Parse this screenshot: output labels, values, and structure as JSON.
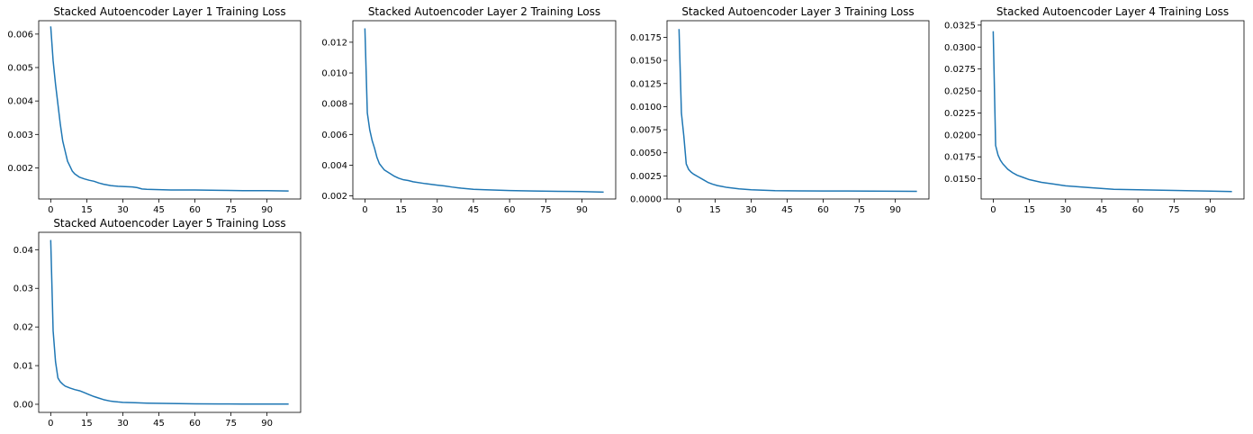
{
  "chart_data": [
    {
      "type": "line",
      "title": "Stacked Autoencoder Layer 1 Training Loss",
      "xlabel": "",
      "ylabel": "",
      "xlim": [
        -5,
        104
      ],
      "ylim": [
        0.00107,
        0.0064
      ],
      "xticks": [
        0,
        15,
        30,
        45,
        60,
        75,
        90
      ],
      "yticks": [
        0.002,
        0.003,
        0.004,
        0.005,
        0.006
      ],
      "ytick_labels": [
        "0.002",
        "0.003",
        "0.004",
        "0.005",
        "0.006"
      ],
      "grid": false,
      "series": [
        {
          "color": "#1f77b4",
          "x": [
            0,
            1,
            2,
            3,
            4,
            5,
            6,
            7,
            8,
            9,
            10,
            12,
            14,
            16,
            18,
            20,
            22,
            25,
            28,
            31,
            34,
            36,
            38,
            40,
            45,
            50,
            55,
            60,
            70,
            80,
            90,
            99
          ],
          "y": [
            0.00623,
            0.0052,
            0.0045,
            0.0039,
            0.0033,
            0.0028,
            0.0025,
            0.0022,
            0.00205,
            0.0019,
            0.00182,
            0.00172,
            0.00167,
            0.00163,
            0.0016,
            0.00155,
            0.00151,
            0.00147,
            0.00145,
            0.00144,
            0.00143,
            0.00141,
            0.00137,
            0.00136,
            0.00135,
            0.00134,
            0.00134,
            0.00134,
            0.00133,
            0.00132,
            0.00132,
            0.00131
          ]
        }
      ]
    },
    {
      "type": "line",
      "title": "Stacked Autoencoder Layer 2 Training Loss",
      "xlabel": "",
      "ylabel": "",
      "xlim": [
        -5,
        104
      ],
      "ylim": [
        0.0018,
        0.0134
      ],
      "xticks": [
        0,
        15,
        30,
        45,
        60,
        75,
        90
      ],
      "yticks": [
        0.002,
        0.004,
        0.006,
        0.008,
        0.01,
        0.012
      ],
      "ytick_labels": [
        "0.002",
        "0.004",
        "0.006",
        "0.008",
        "0.010",
        "0.012"
      ],
      "grid": false,
      "series": [
        {
          "color": "#1f77b4",
          "x": [
            0,
            1,
            2,
            3,
            4,
            5,
            6,
            7,
            8,
            10,
            12,
            14,
            16,
            18,
            20,
            25,
            30,
            33,
            36,
            40,
            45,
            50,
            60,
            70,
            80,
            90,
            99
          ],
          "y": [
            0.0129,
            0.0074,
            0.0063,
            0.0056,
            0.0051,
            0.0045,
            0.0041,
            0.0039,
            0.0037,
            0.0035,
            0.0033,
            0.00315,
            0.00305,
            0.003,
            0.00292,
            0.0028,
            0.0027,
            0.00265,
            0.00258,
            0.0025,
            0.00243,
            0.0024,
            0.00235,
            0.00232,
            0.0023,
            0.00228,
            0.00225
          ]
        }
      ]
    },
    {
      "type": "line",
      "title": "Stacked Autoencoder Layer 3 Training Loss",
      "xlabel": "",
      "ylabel": "",
      "xlim": [
        -5,
        104
      ],
      "ylim": [
        0,
        0.0193
      ],
      "xticks": [
        0,
        15,
        30,
        45,
        60,
        75,
        90
      ],
      "yticks": [
        0,
        0.0025,
        0.005,
        0.0075,
        0.01,
        0.0125,
        0.015,
        0.0175
      ],
      "ytick_labels": [
        "0.0000",
        "0.0025",
        "0.0050",
        "0.0075",
        "0.0100",
        "0.0125",
        "0.0150",
        "0.0175"
      ],
      "grid": false,
      "series": [
        {
          "color": "#1f77b4",
          "x": [
            0,
            1,
            2,
            3,
            4,
            5,
            6,
            8,
            10,
            12,
            14,
            16,
            18,
            20,
            25,
            30,
            35,
            40,
            50,
            60,
            70,
            80,
            90,
            99
          ],
          "y": [
            0.0184,
            0.0093,
            0.0068,
            0.0038,
            0.0032,
            0.0029,
            0.0027,
            0.0024,
            0.0021,
            0.0018,
            0.0016,
            0.00145,
            0.00135,
            0.00125,
            0.0011,
            0.001,
            0.00095,
            0.0009,
            0.00088,
            0.00087,
            0.00086,
            0.00085,
            0.00084,
            0.00083
          ]
        }
      ]
    },
    {
      "type": "line",
      "title": "Stacked Autoencoder Layer 4 Training Loss",
      "xlabel": "",
      "ylabel": "",
      "xlim": [
        -5,
        104
      ],
      "ylim": [
        0.0127,
        0.033
      ],
      "xticks": [
        0,
        15,
        30,
        45,
        60,
        75,
        90
      ],
      "yticks": [
        0.015,
        0.0175,
        0.02,
        0.0225,
        0.025,
        0.0275,
        0.03,
        0.0325
      ],
      "ytick_labels": [
        "0.0150",
        "0.0175",
        "0.0200",
        "0.0225",
        "0.0250",
        "0.0275",
        "0.0300",
        "0.0325"
      ],
      "grid": false,
      "series": [
        {
          "color": "#1f77b4",
          "x": [
            0,
            1,
            2,
            3,
            4,
            5,
            6,
            8,
            10,
            12,
            15,
            20,
            25,
            30,
            35,
            40,
            50,
            60,
            70,
            80,
            90,
            99
          ],
          "y": [
            0.0318,
            0.0188,
            0.0177,
            0.0171,
            0.0167,
            0.0164,
            0.0161,
            0.0157,
            0.0154,
            0.0152,
            0.0149,
            0.0146,
            0.0144,
            0.0142,
            0.0141,
            0.014,
            0.0138,
            0.01375,
            0.0137,
            0.01365,
            0.0136,
            0.01355
          ]
        }
      ]
    },
    {
      "type": "line",
      "title": "Stacked Autoencoder Layer 5 Training Loss",
      "xlabel": "",
      "ylabel": "",
      "xlim": [
        -5,
        104
      ],
      "ylim": [
        -0.0021,
        0.0445
      ],
      "xticks": [
        0,
        15,
        30,
        45,
        60,
        75,
        90
      ],
      "yticks": [
        0,
        0.01,
        0.02,
        0.03,
        0.04
      ],
      "ytick_labels": [
        "0.00",
        "0.01",
        "0.02",
        "0.03",
        "0.04"
      ],
      "grid": false,
      "series": [
        {
          "color": "#1f77b4",
          "x": [
            0,
            1,
            2,
            3,
            4,
            5,
            6,
            8,
            10,
            12,
            14,
            16,
            18,
            20,
            22,
            25,
            28,
            30,
            35,
            40,
            50,
            60,
            70,
            80,
            90,
            99
          ],
          "y": [
            0.0425,
            0.019,
            0.011,
            0.0068,
            0.0058,
            0.0052,
            0.0047,
            0.0042,
            0.0038,
            0.0035,
            0.003,
            0.0025,
            0.002,
            0.0016,
            0.0012,
            0.0008,
            0.0006,
            0.0005,
            0.0004,
            0.0003,
            0.0002,
            0.0001,
            8e-05,
            6e-05,
            5e-05,
            5e-05
          ]
        }
      ]
    }
  ]
}
